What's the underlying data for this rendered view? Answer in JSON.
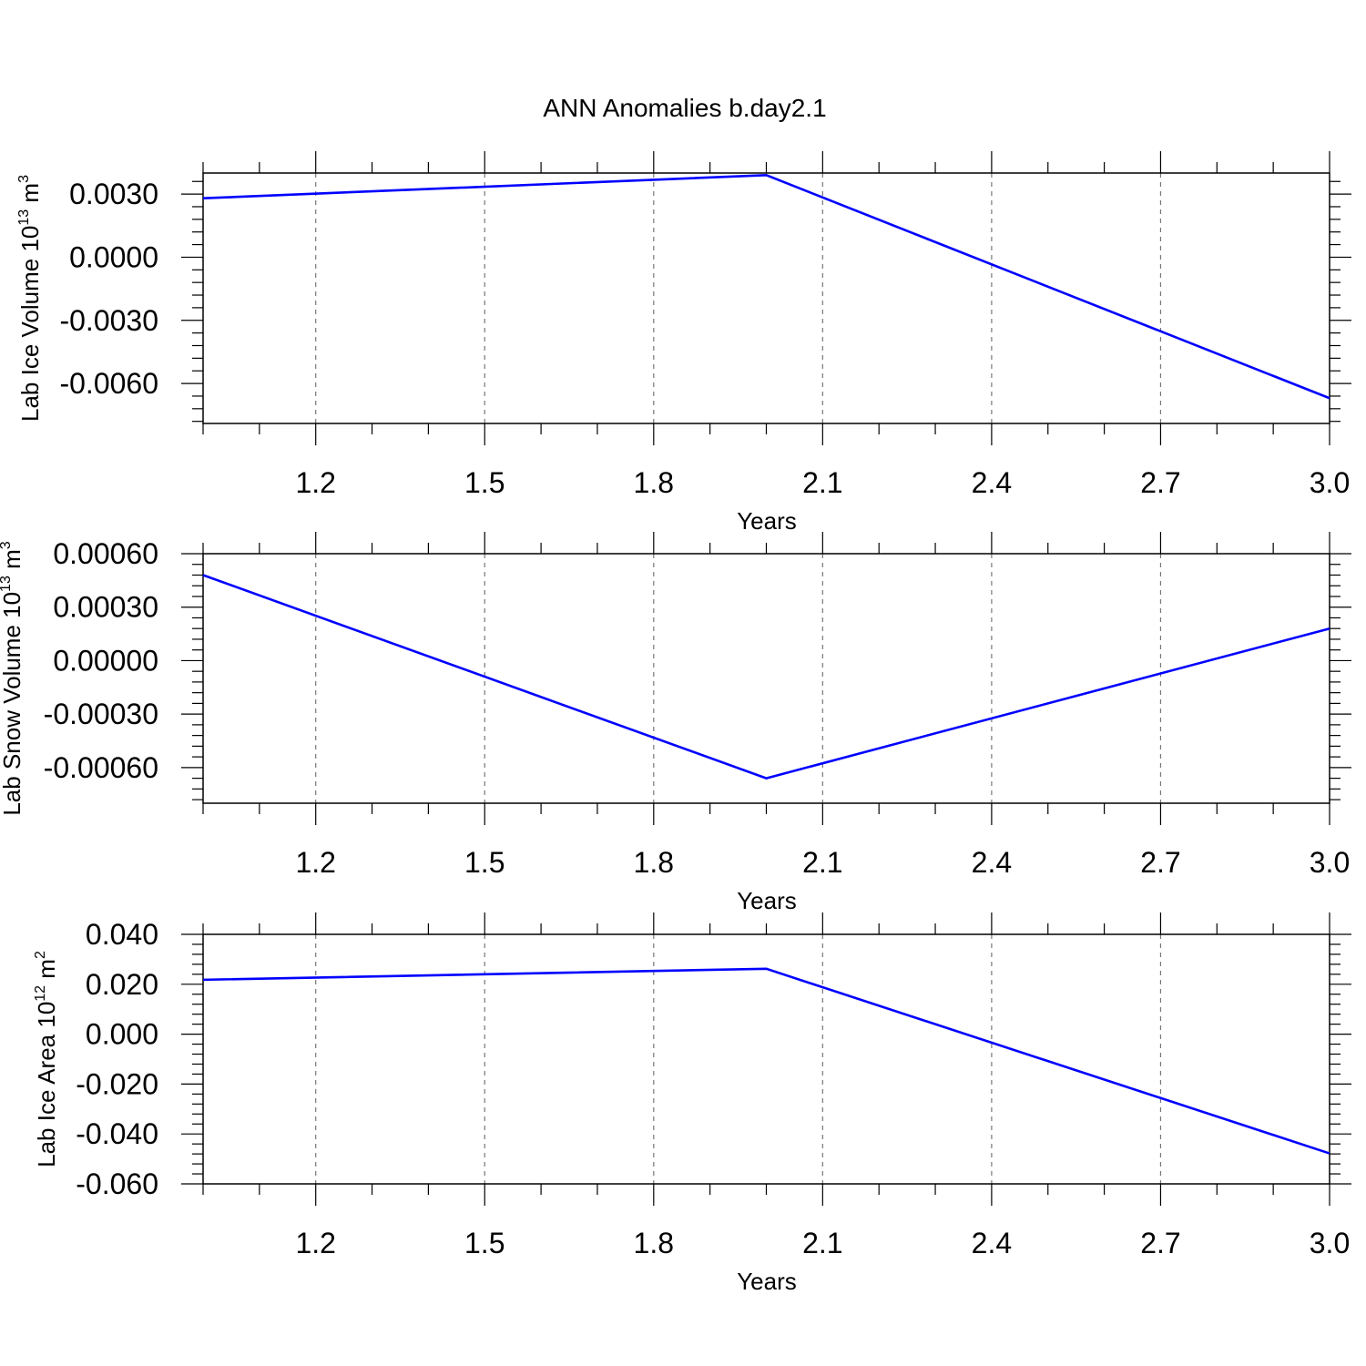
{
  "title": "ANN Anomalies b.day2.1",
  "line_color": "#0000ff",
  "chart_data": [
    {
      "type": "line",
      "xlabel": "Years",
      "ylabel": "Lab Ice Volume 10",
      "ylabel_exp": "13",
      "ylabel_unit": " m",
      "ylabel_unit_exp": "3",
      "xlim": [
        1,
        3
      ],
      "ylim": [
        -0.0079,
        0.004
      ],
      "x_ticks": [
        "1.2",
        "1.5",
        "1.8",
        "2.1",
        "2.4",
        "2.7",
        "3.0"
      ],
      "y_ticks": [
        "0.0030",
        "0.0000",
        "-0.0030",
        "-0.0060"
      ],
      "grid": "dashed vertical at major x ticks",
      "x": [
        1,
        2,
        3
      ],
      "y": [
        0.0028,
        0.0039,
        -0.0067
      ]
    },
    {
      "type": "line",
      "xlabel": "Years",
      "ylabel": "Lab Snow Volume 10",
      "ylabel_exp": "13",
      "ylabel_unit": " m",
      "ylabel_unit_exp": "3",
      "xlim": [
        1,
        3
      ],
      "ylim": [
        -0.0008,
        0.0006
      ],
      "x_ticks": [
        "1.2",
        "1.5",
        "1.8",
        "2.1",
        "2.4",
        "2.7",
        "3.0"
      ],
      "y_ticks": [
        "0.00060",
        "0.00030",
        "0.00000",
        "-0.00030",
        "-0.00060"
      ],
      "grid": "dashed vertical at major x ticks",
      "x": [
        1,
        2,
        3
      ],
      "y": [
        0.00048,
        -0.00066,
        0.00018
      ]
    },
    {
      "type": "line",
      "xlabel": "Years",
      "ylabel": "Lab Ice Area 10",
      "ylabel_exp": "12",
      "ylabel_unit": " m",
      "ylabel_unit_exp": "2",
      "xlim": [
        1,
        3
      ],
      "ylim": [
        -0.06,
        0.04
      ],
      "x_ticks": [
        "1.2",
        "1.5",
        "1.8",
        "2.1",
        "2.4",
        "2.7",
        "3.0"
      ],
      "y_ticks": [
        "0.040",
        "0.020",
        "0.000",
        "-0.020",
        "-0.040",
        "-0.060"
      ],
      "grid": "dashed vertical at major x ticks",
      "x": [
        1,
        2,
        3
      ],
      "y": [
        0.0218,
        0.0262,
        -0.0478
      ]
    }
  ]
}
